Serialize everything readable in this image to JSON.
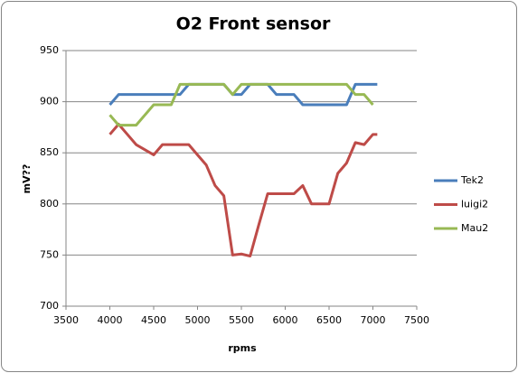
{
  "chart_data": {
    "type": "line",
    "title": "O2 Front sensor",
    "x_label": "rpms",
    "y_label": "mV??",
    "x": [
      4000,
      4100,
      4200,
      4300,
      4400,
      4500,
      4600,
      4700,
      4800,
      4900,
      5000,
      5100,
      5200,
      5300,
      5400,
      5500,
      5600,
      5700,
      5800,
      5900,
      6000,
      6100,
      6200,
      6300,
      6400,
      6500,
      6600,
      6700,
      6800,
      6900,
      7000,
      7050
    ],
    "series": [
      {
        "name": "Tek2",
        "color": "#4a7ebb",
        "values": [
          897,
          907,
          907,
          907,
          907,
          907,
          907,
          907,
          907,
          917,
          917,
          917,
          917,
          917,
          907,
          907,
          917,
          917,
          917,
          907,
          907,
          907,
          897,
          897,
          897,
          897,
          897,
          897,
          917,
          917,
          917,
          917
        ]
      },
      {
        "name": "luigi2",
        "color": "#be4b48",
        "values": [
          868,
          878,
          868,
          858,
          853,
          848,
          858,
          858,
          858,
          858,
          848,
          838,
          818,
          808,
          750,
          751,
          749,
          780,
          810,
          810,
          810,
          810,
          818,
          800,
          800,
          800,
          830,
          840,
          860,
          858,
          868,
          868
        ]
      },
      {
        "name": "Mau2",
        "color": "#98b954",
        "values": [
          887,
          877,
          877,
          877,
          887,
          897,
          897,
          897,
          917,
          917,
          917,
          917,
          917,
          917,
          907,
          917,
          917,
          917,
          917,
          917,
          917,
          917,
          917,
          917,
          917,
          917,
          917,
          917,
          907,
          907,
          897,
          null
        ]
      }
    ],
    "xlim": [
      3500,
      7500
    ],
    "xticks": [
      3500,
      4000,
      4500,
      5000,
      5500,
      6000,
      6500,
      7000,
      7500
    ],
    "ylim": [
      700,
      950
    ],
    "yticks": [
      700,
      750,
      800,
      850,
      900,
      950
    ],
    "grid": true,
    "legend": "right"
  }
}
